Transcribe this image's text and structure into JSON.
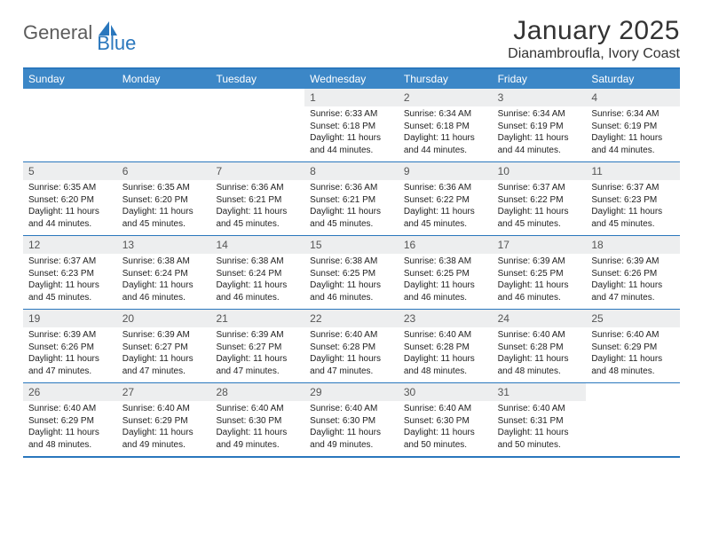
{
  "brand": {
    "general": "General",
    "blue": "Blue",
    "general_color": "#5c5c5c",
    "blue_color": "#2a77bd",
    "sail_fill": "#2a77bd"
  },
  "title": {
    "month": "January 2025",
    "location": "Dianambroufla, Ivory Coast"
  },
  "colors": {
    "header_bg": "#3c87c7",
    "border": "#2a77bd",
    "daynum_bg": "#edeeef",
    "text": "#222222",
    "daynum_text": "#555555",
    "bg": "#ffffff"
  },
  "day_labels": [
    "Sunday",
    "Monday",
    "Tuesday",
    "Wednesday",
    "Thursday",
    "Friday",
    "Saturday"
  ],
  "weeks": [
    [
      null,
      null,
      null,
      {
        "n": "1",
        "sr": "Sunrise: 6:33 AM",
        "ss": "Sunset: 6:18 PM",
        "dl": "Daylight: 11 hours and 44 minutes."
      },
      {
        "n": "2",
        "sr": "Sunrise: 6:34 AM",
        "ss": "Sunset: 6:18 PM",
        "dl": "Daylight: 11 hours and 44 minutes."
      },
      {
        "n": "3",
        "sr": "Sunrise: 6:34 AM",
        "ss": "Sunset: 6:19 PM",
        "dl": "Daylight: 11 hours and 44 minutes."
      },
      {
        "n": "4",
        "sr": "Sunrise: 6:34 AM",
        "ss": "Sunset: 6:19 PM",
        "dl": "Daylight: 11 hours and 44 minutes."
      }
    ],
    [
      {
        "n": "5",
        "sr": "Sunrise: 6:35 AM",
        "ss": "Sunset: 6:20 PM",
        "dl": "Daylight: 11 hours and 44 minutes."
      },
      {
        "n": "6",
        "sr": "Sunrise: 6:35 AM",
        "ss": "Sunset: 6:20 PM",
        "dl": "Daylight: 11 hours and 45 minutes."
      },
      {
        "n": "7",
        "sr": "Sunrise: 6:36 AM",
        "ss": "Sunset: 6:21 PM",
        "dl": "Daylight: 11 hours and 45 minutes."
      },
      {
        "n": "8",
        "sr": "Sunrise: 6:36 AM",
        "ss": "Sunset: 6:21 PM",
        "dl": "Daylight: 11 hours and 45 minutes."
      },
      {
        "n": "9",
        "sr": "Sunrise: 6:36 AM",
        "ss": "Sunset: 6:22 PM",
        "dl": "Daylight: 11 hours and 45 minutes."
      },
      {
        "n": "10",
        "sr": "Sunrise: 6:37 AM",
        "ss": "Sunset: 6:22 PM",
        "dl": "Daylight: 11 hours and 45 minutes."
      },
      {
        "n": "11",
        "sr": "Sunrise: 6:37 AM",
        "ss": "Sunset: 6:23 PM",
        "dl": "Daylight: 11 hours and 45 minutes."
      }
    ],
    [
      {
        "n": "12",
        "sr": "Sunrise: 6:37 AM",
        "ss": "Sunset: 6:23 PM",
        "dl": "Daylight: 11 hours and 45 minutes."
      },
      {
        "n": "13",
        "sr": "Sunrise: 6:38 AM",
        "ss": "Sunset: 6:24 PM",
        "dl": "Daylight: 11 hours and 46 minutes."
      },
      {
        "n": "14",
        "sr": "Sunrise: 6:38 AM",
        "ss": "Sunset: 6:24 PM",
        "dl": "Daylight: 11 hours and 46 minutes."
      },
      {
        "n": "15",
        "sr": "Sunrise: 6:38 AM",
        "ss": "Sunset: 6:25 PM",
        "dl": "Daylight: 11 hours and 46 minutes."
      },
      {
        "n": "16",
        "sr": "Sunrise: 6:38 AM",
        "ss": "Sunset: 6:25 PM",
        "dl": "Daylight: 11 hours and 46 minutes."
      },
      {
        "n": "17",
        "sr": "Sunrise: 6:39 AM",
        "ss": "Sunset: 6:25 PM",
        "dl": "Daylight: 11 hours and 46 minutes."
      },
      {
        "n": "18",
        "sr": "Sunrise: 6:39 AM",
        "ss": "Sunset: 6:26 PM",
        "dl": "Daylight: 11 hours and 47 minutes."
      }
    ],
    [
      {
        "n": "19",
        "sr": "Sunrise: 6:39 AM",
        "ss": "Sunset: 6:26 PM",
        "dl": "Daylight: 11 hours and 47 minutes."
      },
      {
        "n": "20",
        "sr": "Sunrise: 6:39 AM",
        "ss": "Sunset: 6:27 PM",
        "dl": "Daylight: 11 hours and 47 minutes."
      },
      {
        "n": "21",
        "sr": "Sunrise: 6:39 AM",
        "ss": "Sunset: 6:27 PM",
        "dl": "Daylight: 11 hours and 47 minutes."
      },
      {
        "n": "22",
        "sr": "Sunrise: 6:40 AM",
        "ss": "Sunset: 6:28 PM",
        "dl": "Daylight: 11 hours and 47 minutes."
      },
      {
        "n": "23",
        "sr": "Sunrise: 6:40 AM",
        "ss": "Sunset: 6:28 PM",
        "dl": "Daylight: 11 hours and 48 minutes."
      },
      {
        "n": "24",
        "sr": "Sunrise: 6:40 AM",
        "ss": "Sunset: 6:28 PM",
        "dl": "Daylight: 11 hours and 48 minutes."
      },
      {
        "n": "25",
        "sr": "Sunrise: 6:40 AM",
        "ss": "Sunset: 6:29 PM",
        "dl": "Daylight: 11 hours and 48 minutes."
      }
    ],
    [
      {
        "n": "26",
        "sr": "Sunrise: 6:40 AM",
        "ss": "Sunset: 6:29 PM",
        "dl": "Daylight: 11 hours and 48 minutes."
      },
      {
        "n": "27",
        "sr": "Sunrise: 6:40 AM",
        "ss": "Sunset: 6:29 PM",
        "dl": "Daylight: 11 hours and 49 minutes."
      },
      {
        "n": "28",
        "sr": "Sunrise: 6:40 AM",
        "ss": "Sunset: 6:30 PM",
        "dl": "Daylight: 11 hours and 49 minutes."
      },
      {
        "n": "29",
        "sr": "Sunrise: 6:40 AM",
        "ss": "Sunset: 6:30 PM",
        "dl": "Daylight: 11 hours and 49 minutes."
      },
      {
        "n": "30",
        "sr": "Sunrise: 6:40 AM",
        "ss": "Sunset: 6:30 PM",
        "dl": "Daylight: 11 hours and 50 minutes."
      },
      {
        "n": "31",
        "sr": "Sunrise: 6:40 AM",
        "ss": "Sunset: 6:31 PM",
        "dl": "Daylight: 11 hours and 50 minutes."
      },
      null
    ]
  ]
}
